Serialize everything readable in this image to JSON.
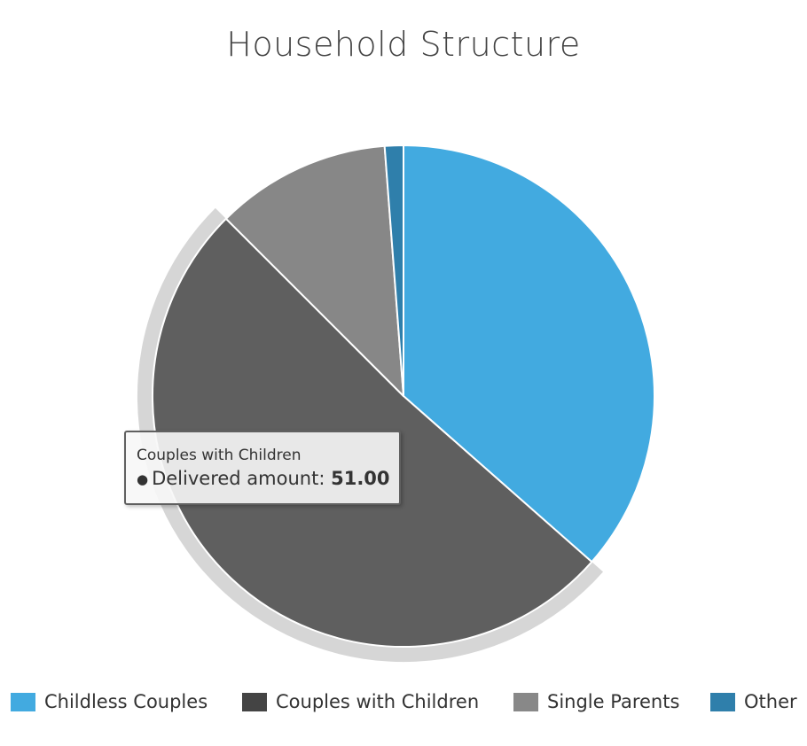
{
  "chart_data": {
    "type": "pie",
    "title": "Household Structure",
    "categories": [
      "Childless Couples",
      "Couples with Children",
      "Single Parents",
      "Other"
    ],
    "values": [
      36.5,
      51.0,
      11.3,
      1.2
    ],
    "colors": [
      "#42aae0",
      "#5f5f5f",
      "#878787",
      "#2f7fab"
    ],
    "legend_colors": [
      "#42aae0",
      "#444444",
      "#888888",
      "#2f7fab"
    ],
    "hovered": "Couples with Children",
    "legend_position": "bottom",
    "series_name": "Delivered amount"
  },
  "tooltip": {
    "title": "Couples with Children",
    "label": "Delivered amount",
    "value": "51.00"
  }
}
